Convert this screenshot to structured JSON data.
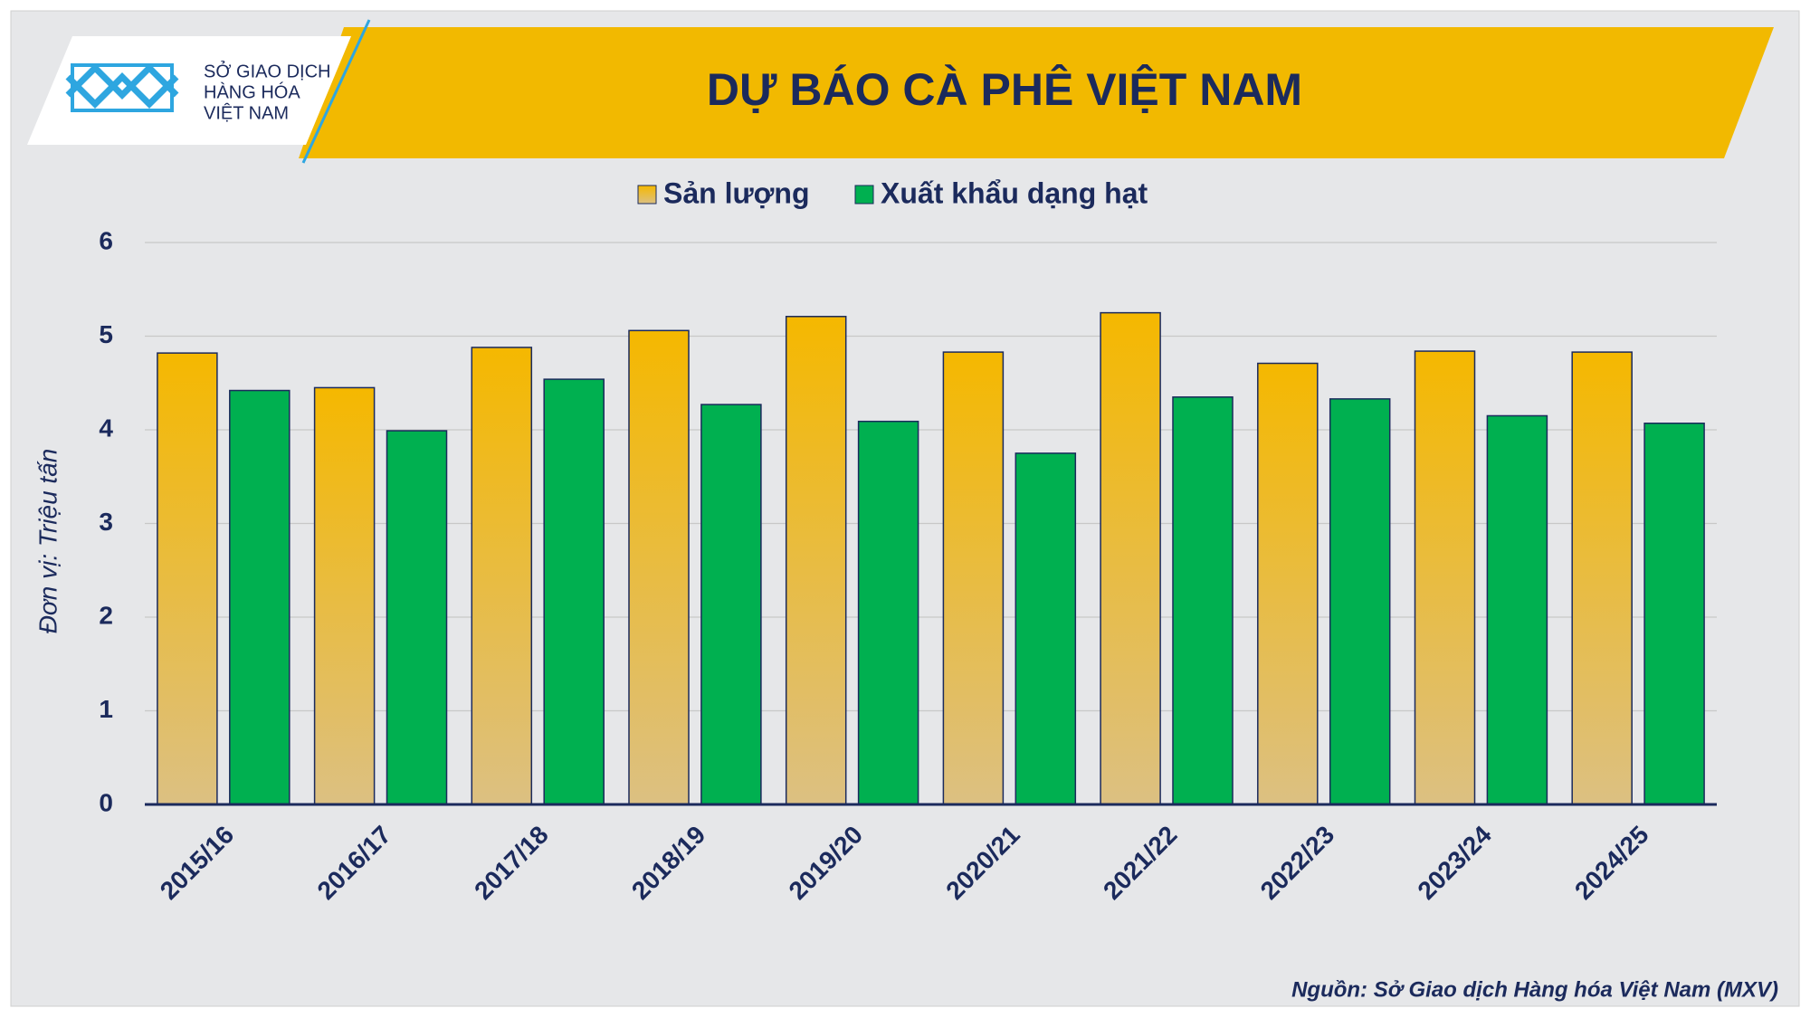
{
  "logo": {
    "lines": [
      "SỞ GIAO DỊCH",
      "HÀNG HÓA",
      "VIỆT NAM"
    ]
  },
  "chart_data": {
    "type": "bar",
    "title": "DỰ BÁO CÀ PHÊ VIỆT NAM",
    "y_label": "Đơn vị: Triệu tấn",
    "source": "Nguồn: Sở Giao dịch Hàng hóa Việt Nam (MXV)",
    "categories": [
      "2015/16",
      "2016/17",
      "2017/18",
      "2018/19",
      "2019/20",
      "2020/21",
      "2021/22",
      "2022/23",
      "2023/24",
      "2024/25"
    ],
    "series": [
      {
        "name": "Sản lượng",
        "color": "#f5b800",
        "values": [
          4.82,
          4.45,
          4.88,
          5.06,
          5.21,
          4.83,
          5.25,
          4.71,
          4.84,
          4.83
        ]
      },
      {
        "name": "Xuất khẩu dạng hạt",
        "color": "#00b050",
        "values": [
          4.42,
          3.99,
          4.54,
          4.27,
          4.09,
          3.75,
          4.35,
          4.33,
          4.15,
          4.07
        ]
      }
    ],
    "ylim": [
      0,
      6
    ],
    "yticks": [
      0,
      1,
      2,
      3,
      4,
      5,
      6
    ],
    "grid": true,
    "legend": "top"
  }
}
